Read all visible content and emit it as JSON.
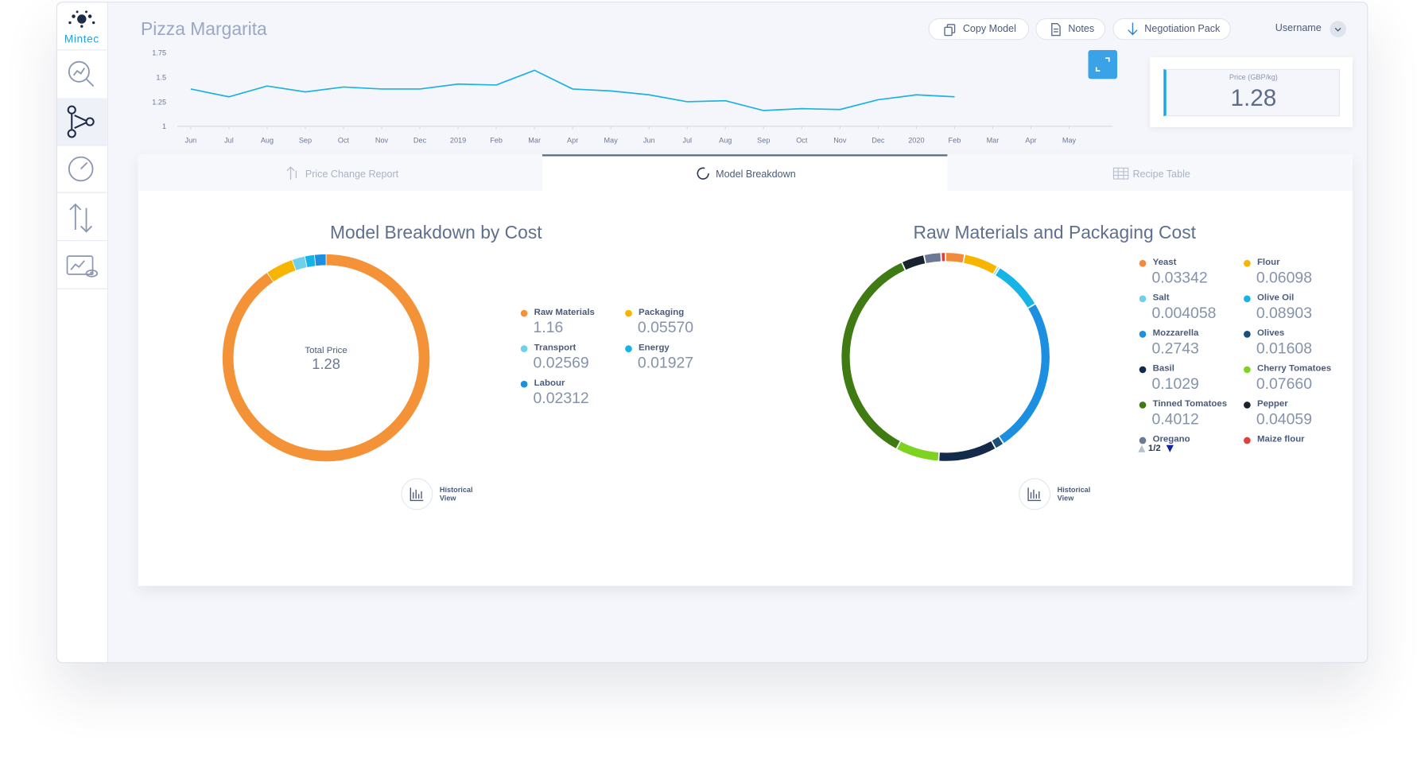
{
  "app": {
    "logo": "Mintec",
    "title": "Pizza Margarita",
    "buttons": [
      "Copy Model",
      "Notes",
      "Negotiation Pack"
    ],
    "user": "Username"
  },
  "price_box": {
    "label": "Price (GBP/kg)",
    "value": "1.28"
  },
  "tabs": [
    "Price Change Report",
    "Model Breakdown",
    "Recipe Table"
  ],
  "historical_view": "Historical View",
  "chart_data": [
    {
      "type": "line",
      "categories": [
        "Jun",
        "Jul",
        "Aug",
        "Sep",
        "Oct",
        "Nov",
        "Dec",
        "2019",
        "Feb",
        "Mar",
        "Apr",
        "May",
        "Jun",
        "Jul",
        "Aug",
        "Sep",
        "Oct",
        "Nov",
        "Dec",
        "2020",
        "Feb",
        "Mar",
        "Apr",
        "May"
      ],
      "series": [
        {
          "color": "#1fb2e0",
          "values": [
            1.38,
            1.3,
            1.41,
            1.35,
            1.4,
            1.38,
            1.38,
            1.43,
            1.42,
            1.57,
            1.38,
            1.36,
            1.32,
            1.25,
            1.26,
            1.16,
            1.18,
            1.17,
            1.27,
            1.32,
            1.3,
            null,
            null,
            null
          ]
        }
      ],
      "ylim": [
        1,
        1.75
      ],
      "yticks": [
        1,
        1.25,
        1.5,
        1.75
      ]
    },
    {
      "type": "donut",
      "title": "Model Breakdown by Cost",
      "center_label": "Total Price",
      "total": 1.28,
      "categories": [
        "Raw Materials",
        "Packaging",
        "Transport",
        "Energy",
        "Labour"
      ],
      "values": [
        1.16,
        0.0557,
        0.02569,
        0.01927,
        0.02312
      ],
      "value_labels": [
        "1.16",
        "0.05570",
        "0.02569",
        "0.01927",
        "0.02312"
      ],
      "colors": [
        "#f39237",
        "#f7b500",
        "#6fd0ea",
        "#16b3e6",
        "#1d8fe0"
      ]
    },
    {
      "type": "donut",
      "title": "Raw Materials and Packaging Cost",
      "legend_page": "1/2",
      "categories": [
        "Yeast",
        "Flour",
        "Salt",
        "Olive Oil",
        "Mozzarella",
        "Olives",
        "Basil",
        "Cherry Tomatoes",
        "Tinned Tomatoes",
        "Pepper",
        "Oregano",
        "Maize flour"
      ],
      "values": [
        0.03342,
        0.06098,
        0.004058,
        0.08903,
        0.2743,
        0.01608,
        0.1029,
        0.0766,
        0.4012,
        0.04059,
        0.03,
        0.008
      ],
      "value_labels": [
        "0.03342",
        "0.06098",
        "0.004058",
        "0.08903",
        "0.2743",
        "0.01608",
        "0.1029",
        "0.07660",
        "0.4012",
        "0.04059",
        null,
        null
      ],
      "colors": [
        "#f28a3c",
        "#f7b500",
        "#6fd0ea",
        "#16b3e6",
        "#1d8fe0",
        "#1b4f7a",
        "#132a4a",
        "#7ed321",
        "#3f7a12",
        "#1a2230",
        "#6b7896",
        "#e04040"
      ]
    }
  ]
}
